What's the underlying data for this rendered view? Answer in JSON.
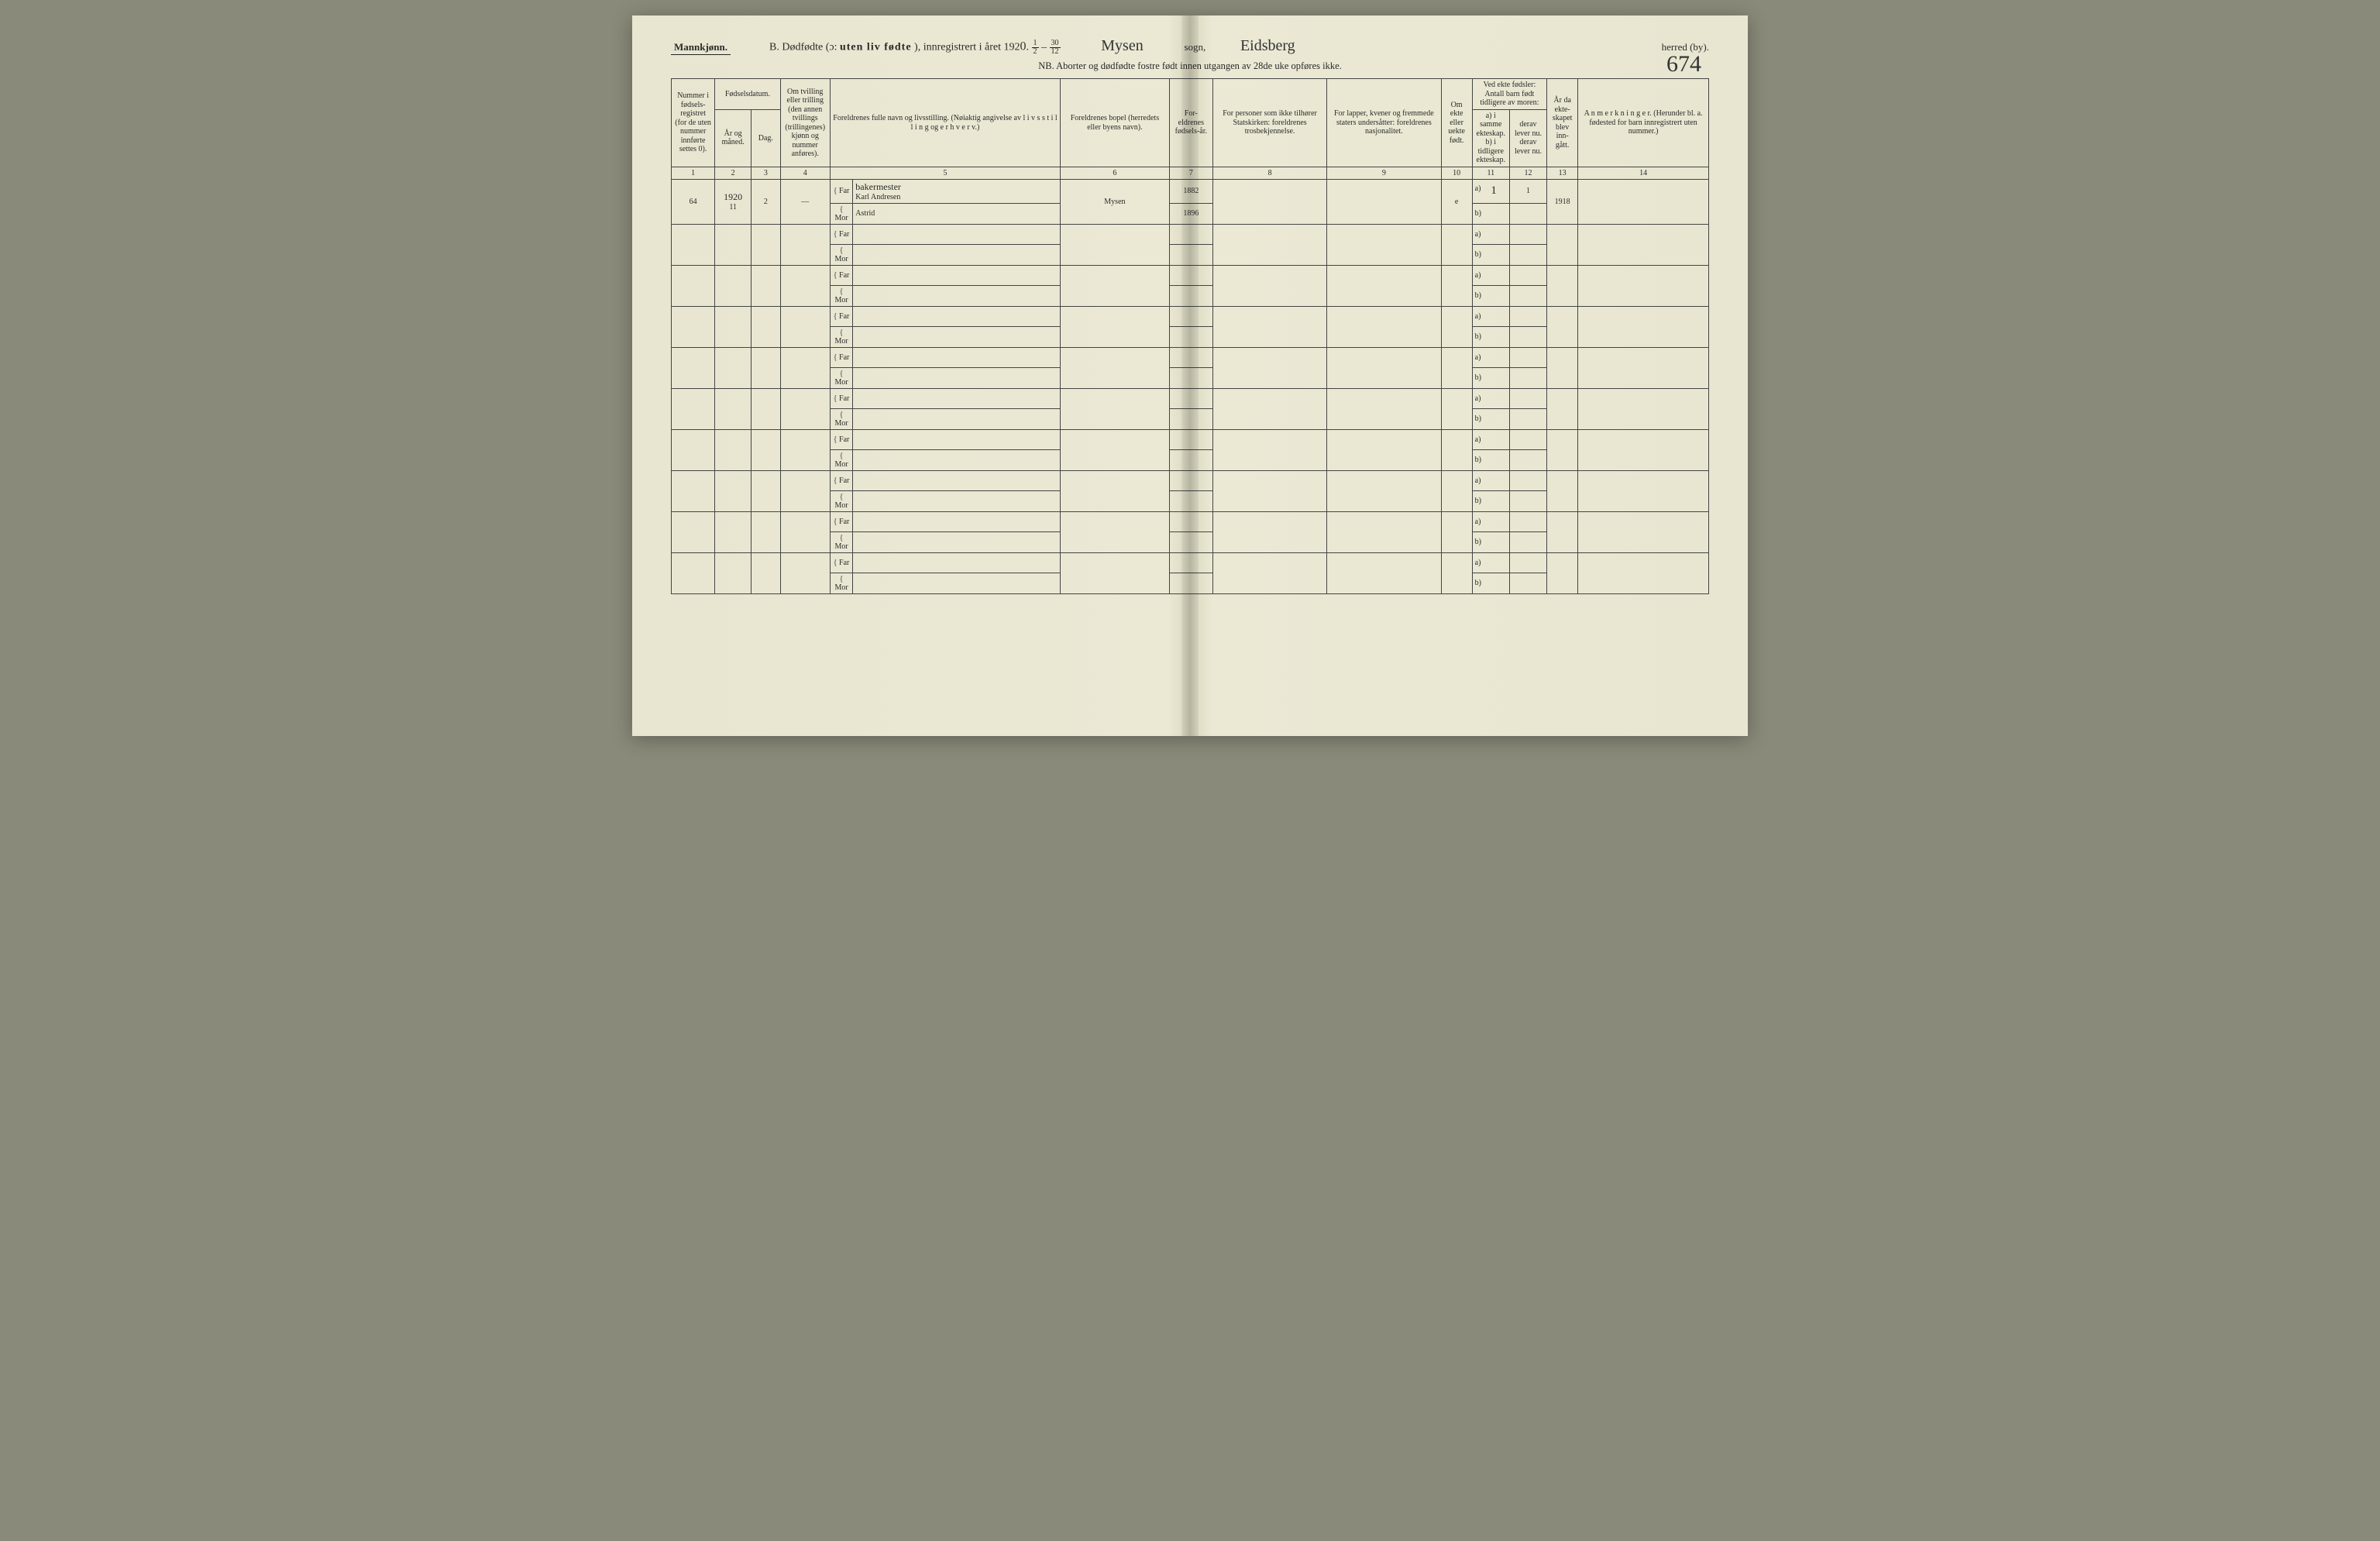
{
  "page": {
    "background_color": "#e8e6d0",
    "binding_shadow": "#cfcdb8",
    "page_number_handwritten": "674"
  },
  "header": {
    "gender_label": "Mannkjønn.",
    "title_prefix": "B.  Dødfødte (ɔ:",
    "title_emph": "uten liv fødte",
    "title_suffix": "), innregistrert i året 192",
    "year_digit": "0",
    "period_sep": ". ",
    "fraction1_num": "1",
    "fraction1_den": "2",
    "dash": " – ",
    "fraction2_num": "30",
    "fraction2_den": "12",
    "sogn_value_hw": "Mysen",
    "sogn_label": "sogn,",
    "herred_value_hw": "Eidsberg",
    "herred_label": "herred (by).",
    "subtitle": "NB.  Aborter og dødfødte fostre født innen utgangen av 28de uke opføres ikke."
  },
  "columns": {
    "c1": "Nummer i fødsels-registret (for de uten nummer innførte settes 0).",
    "c2_group": "Fødselsdatum.",
    "c2a": "År og måned.",
    "c2b": "Dag.",
    "c4": "Om tvilling eller trilling (den annen tvillings (trillingenes) kjønn og nummer anføres).",
    "c5": "Foreldrenes fulle navn og livsstilling. (Nøiaktig angivelse av  l i v s s t i l l i n g  og  e r h v e r v.)",
    "c6": "Foreldrenes bopel (herredets eller byens navn).",
    "c7": "For-eldrenes fødsels-år.",
    "c8": "For personer som ikke tilhører Statskirken: foreldrenes trosbekjennelse.",
    "c9": "For lapper, kvener og fremmede staters undersåtter: foreldrenes nasjonalitet.",
    "c10": "Om ekte eller uekte født.",
    "c11_12_top": "Ved ekte fødsler: Antall barn født tidligere av moren:",
    "c11": "a) i samme ekteskap.  b) i tidligere ekteskap.",
    "c12": "derav lever nu.  derav lever nu.",
    "c13": "År da ekte-skapet blev inn-gått.",
    "c14": "A n m e r k n i n g e r. (Herunder bl. a. fødested for barn innregistrert uten nummer.)",
    "nums": [
      "1",
      "2",
      "3",
      "4",
      "5",
      "6",
      "7",
      "8",
      "9",
      "10",
      "11",
      "12",
      "13",
      "14"
    ]
  },
  "row_labels": {
    "far": "Far",
    "mor": "Mor",
    "a": "a)",
    "b": "b)"
  },
  "entries": [
    {
      "num": "64",
      "year_line": "1920",
      "month": "11",
      "day": "2",
      "twin": "—",
      "far_occ": "bakermester",
      "far_name": "Karl Andresen",
      "mor_name": "Astrid",
      "bopel": "Mysen",
      "far_birth": "1882",
      "mor_birth": "1896",
      "ekte": "e",
      "a_same": "1",
      "a_lev": "1",
      "marriage_year": "1918"
    }
  ],
  "empty_rows": 9,
  "style": {
    "border_color": "#444",
    "text_color": "#2a2a2a",
    "handwriting_color": "#333",
    "header_font_size_pt": 10,
    "body_font_size_pt": 10
  }
}
